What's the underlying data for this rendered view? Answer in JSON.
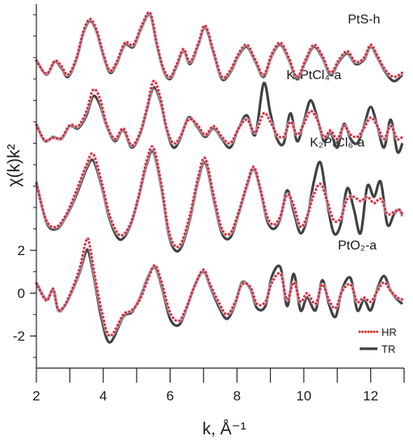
{
  "chart_data": {
    "type": "line",
    "title": "",
    "xlabel": "k, Å⁻¹",
    "ylabel": "χ(k)k²",
    "xlim": [
      2,
      13
    ],
    "ylim": [
      -3.5,
      13.5
    ],
    "x_ticks": [
      2,
      4,
      6,
      8,
      10,
      12
    ],
    "y_ticks": [
      -2,
      0,
      2
    ],
    "grid": false,
    "legend": {
      "placement": "bottom-right",
      "entries": [
        {
          "label": "HR",
          "color": "#d42a2a",
          "style": "dotted"
        },
        {
          "label": "TR",
          "color": "#404040",
          "style": "solid"
        }
      ]
    },
    "series": [
      {
        "label": "PtO₂-a",
        "offset": 0,
        "x": [
          2.0,
          2.3,
          2.5,
          2.65,
          2.85,
          3.1,
          3.3,
          3.5,
          3.6,
          3.75,
          3.95,
          4.2,
          4.6,
          4.85,
          5.1,
          5.35,
          5.55,
          5.75,
          6.0,
          6.25,
          6.45,
          6.75,
          7.0,
          7.2,
          7.45,
          7.7,
          7.95,
          8.15,
          8.4,
          8.6,
          8.85,
          9.05,
          9.3,
          9.5,
          9.7,
          9.9,
          10.1,
          10.35,
          10.55,
          10.75,
          10.95,
          11.15,
          11.4,
          11.6,
          11.8,
          12.0,
          12.2,
          12.4,
          12.6,
          12.8,
          12.95
        ],
        "tr": [
          0.5,
          -0.3,
          0.15,
          -0.8,
          -0.6,
          0.2,
          1.0,
          2.0,
          1.7,
          0.5,
          -1.2,
          -2.3,
          -1.1,
          -0.9,
          -0.2,
          0.8,
          1.2,
          0.3,
          -1.2,
          -1.5,
          -0.9,
          0.4,
          1.0,
          0.3,
          -0.6,
          -1.2,
          -0.5,
          0.5,
          0.2,
          -0.7,
          -0.6,
          0.8,
          1.2,
          -0.6,
          0.9,
          -0.8,
          -0.2,
          -0.8,
          0.6,
          -0.5,
          -1.1,
          0.2,
          0.7,
          -0.8,
          -0.3,
          -0.8,
          0.2,
          0.8,
          0.1,
          -0.3,
          -0.5
        ],
        "hr": [
          0.45,
          -0.35,
          0.2,
          -0.75,
          -0.55,
          0.3,
          1.2,
          2.5,
          2.2,
          0.8,
          -0.8,
          -2.0,
          -1.0,
          -0.8,
          -0.3,
          0.7,
          1.3,
          0.5,
          -0.9,
          -1.3,
          -0.8,
          0.4,
          1.1,
          0.4,
          -0.4,
          -1.0,
          -0.4,
          0.4,
          0.3,
          -0.5,
          -0.4,
          0.5,
          0.9,
          -0.3,
          0.5,
          -0.4,
          0.0,
          -0.5,
          0.4,
          -0.3,
          -0.7,
          0.1,
          0.4,
          -0.4,
          -0.2,
          -0.4,
          0.1,
          0.5,
          0.1,
          -0.2,
          -0.3
        ]
      },
      {
        "label": "K₂PtCl₆-a",
        "offset": 4,
        "x": [
          2.0,
          2.3,
          2.6,
          2.9,
          3.2,
          3.5,
          3.7,
          3.95,
          4.2,
          4.5,
          4.8,
          5.05,
          5.3,
          5.5,
          5.75,
          5.95,
          6.15,
          6.35,
          6.6,
          6.85,
          7.05,
          7.3,
          7.55,
          7.8,
          8.05,
          8.3,
          8.5,
          8.7,
          8.9,
          9.1,
          9.3,
          9.5,
          9.7,
          9.9,
          10.1,
          10.3,
          10.5,
          10.7,
          10.9,
          11.1,
          11.3,
          11.5,
          11.7,
          11.9,
          12.1,
          12.3,
          12.5,
          12.7,
          12.85,
          12.95
        ],
        "tr": [
          1.2,
          -0.7,
          -1.0,
          -0.4,
          0.6,
          1.8,
          2.2,
          1.0,
          -0.6,
          -1.5,
          -0.9,
          0.4,
          2.0,
          2.6,
          0.8,
          -1.2,
          -2.0,
          -1.8,
          -0.5,
          1.3,
          2.1,
          0.4,
          -1.2,
          -1.4,
          -0.3,
          1.0,
          1.8,
          0.8,
          -0.6,
          -1.0,
          -0.5,
          0.8,
          -0.2,
          -1.2,
          -0.5,
          1.2,
          2.1,
          0.2,
          -1.2,
          -0.8,
          0.9,
          -0.1,
          -1.2,
          1.0,
          0.5,
          1.2,
          -0.8,
          -0.3,
          -0.1,
          -0.4
        ],
        "hr": [
          1.1,
          -0.6,
          -0.9,
          -0.3,
          0.8,
          2.0,
          2.5,
          1.2,
          -0.4,
          -1.3,
          -0.8,
          0.5,
          2.2,
          2.8,
          1.0,
          -1.0,
          -1.8,
          -1.6,
          -0.3,
          1.5,
          2.3,
          0.6,
          -1.0,
          -1.2,
          -0.2,
          1.1,
          1.9,
          0.9,
          -0.4,
          -0.8,
          -0.4,
          0.6,
          0.1,
          -0.9,
          -0.4,
          0.6,
          1.1,
          0.3,
          -0.6,
          -0.5,
          0.4,
          0.5,
          0.3,
          0.5,
          0.2,
          0.4,
          -0.3,
          -0.2,
          -0.1,
          -0.3
        ]
      },
      {
        "label": "K₂PtCl₄-a",
        "offset": 7.6,
        "x": [
          2.0,
          2.25,
          2.5,
          2.75,
          3.0,
          3.25,
          3.5,
          3.7,
          3.9,
          4.1,
          4.35,
          4.6,
          4.85,
          5.1,
          5.3,
          5.5,
          5.7,
          5.9,
          6.1,
          6.3,
          6.55,
          6.8,
          7.05,
          7.3,
          7.55,
          7.8,
          8.05,
          8.3,
          8.55,
          8.8,
          9.0,
          9.2,
          9.4,
          9.6,
          9.8,
          10.0,
          10.2,
          10.4,
          10.6,
          10.8,
          11.0,
          11.2,
          11.4,
          11.6,
          11.8,
          12.0,
          12.2,
          12.4,
          12.6,
          12.8,
          12.95
        ],
        "tr": [
          0.3,
          -0.5,
          -0.3,
          -0.4,
          0.2,
          0.1,
          0.7,
          1.6,
          1.2,
          0.2,
          -0.5,
          0.0,
          -0.8,
          -0.2,
          0.9,
          2.0,
          1.4,
          0.0,
          -0.8,
          -0.4,
          0.6,
          0.2,
          -0.3,
          0.1,
          -0.4,
          -0.8,
          0.1,
          0.7,
          -0.2,
          2.2,
          0.8,
          -0.4,
          -0.6,
          0.8,
          -0.5,
          0.4,
          1.4,
          0.6,
          -0.5,
          -0.1,
          -0.8,
          0.3,
          -0.4,
          -0.6,
          0.2,
          1.1,
          0.2,
          -0.8,
          0.5,
          -1.0,
          -0.6
        ],
        "hr": [
          0.25,
          -0.45,
          -0.35,
          -0.35,
          0.25,
          0.2,
          0.9,
          1.9,
          1.5,
          0.3,
          -0.4,
          0.1,
          -0.7,
          -0.1,
          1.0,
          2.3,
          1.6,
          0.1,
          -0.6,
          -0.3,
          0.5,
          0.3,
          -0.2,
          0.2,
          -0.3,
          -0.6,
          0.1,
          0.5,
          -0.1,
          0.8,
          0.4,
          -0.2,
          -0.3,
          0.4,
          -0.2,
          0.3,
          0.9,
          0.5,
          -0.3,
          0.0,
          -0.4,
          0.2,
          -0.2,
          -0.3,
          0.1,
          0.6,
          0.2,
          -0.4,
          0.2,
          -0.4,
          -0.3
        ]
      },
      {
        "label": "PtS-h",
        "offset": 10.6,
        "x": [
          2.0,
          2.3,
          2.55,
          2.75,
          2.95,
          3.2,
          3.4,
          3.6,
          3.8,
          4.0,
          4.2,
          4.4,
          4.65,
          4.9,
          5.15,
          5.4,
          5.6,
          5.8,
          6.0,
          6.2,
          6.4,
          6.6,
          6.85,
          7.05,
          7.3,
          7.55,
          7.8,
          8.05,
          8.3,
          8.55,
          8.8,
          9.05,
          9.3,
          9.55,
          9.8,
          10.05,
          10.3,
          10.55,
          10.8,
          11.05,
          11.3,
          11.55,
          11.8,
          12.0,
          12.2,
          12.45,
          12.7,
          12.95
        ],
        "tr": [
          0.3,
          -0.4,
          0.2,
          -0.1,
          -0.5,
          0.3,
          1.5,
          2.1,
          1.6,
          0.5,
          -0.3,
          0.1,
          1.0,
          0.9,
          1.8,
          2.4,
          1.0,
          -0.2,
          -0.6,
          0.0,
          0.7,
          0.1,
          1.0,
          1.8,
          0.6,
          -0.6,
          -0.3,
          0.5,
          0.9,
          0.2,
          -0.5,
          0.5,
          1.0,
          0.3,
          -0.6,
          0.2,
          0.9,
          0.4,
          -0.4,
          0.2,
          0.6,
          0.1,
          0.3,
          0.9,
          0.4,
          -0.3,
          -0.7,
          -0.4
        ],
        "hr": [
          0.25,
          -0.35,
          0.25,
          0.0,
          -0.4,
          0.4,
          1.6,
          2.2,
          1.7,
          0.6,
          -0.2,
          0.2,
          1.1,
          1.0,
          1.9,
          2.5,
          1.1,
          -0.1,
          -0.5,
          0.1,
          0.8,
          0.2,
          1.1,
          1.9,
          0.7,
          -0.5,
          -0.2,
          0.6,
          1.0,
          0.3,
          -0.4,
          0.6,
          1.1,
          0.4,
          -0.5,
          0.3,
          1.0,
          0.5,
          -0.3,
          0.3,
          0.7,
          0.2,
          0.4,
          1.0,
          0.5,
          -0.2,
          -0.5,
          -0.3
        ]
      }
    ]
  }
}
